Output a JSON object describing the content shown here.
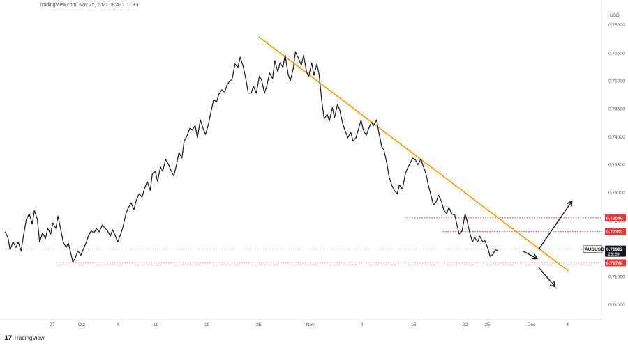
{
  "header": {
    "source_text": "TradingView.com, Nov 25, 2021 08:43 UTC+3"
  },
  "footer": {
    "logo_text": "TradingView"
  },
  "chart_data": {
    "type": "line",
    "symbol": "AUDUSD",
    "currency": "USD",
    "price_axis": {
      "ticks": [
        0.76,
        0.755,
        0.75,
        0.745,
        0.74,
        0.735,
        0.73,
        0.725,
        0.72,
        0.715,
        0.71
      ],
      "tick_labels": [
        "0.76000",
        "0.75500",
        "0.75000",
        "0.74500",
        "0.74000",
        "0.73500",
        "0.73000",
        "0.72500",
        "0.72000",
        "0.71500",
        "0.71000"
      ],
      "ylim": [
        0.7073,
        0.7627
      ]
    },
    "time_axis": {
      "ticks": [
        {
          "label": "27",
          "day": -4
        },
        {
          "label": "Oct",
          "day": 0
        },
        {
          "label": "6",
          "day": 5
        },
        {
          "label": "11",
          "day": 10
        },
        {
          "label": "18",
          "day": 17
        },
        {
          "label": "25",
          "day": 24
        },
        {
          "label": "Nov",
          "day": 31
        },
        {
          "label": "8",
          "day": 38
        },
        {
          "label": "15",
          "day": 45
        },
        {
          "label": "22",
          "day": 52
        },
        {
          "label": "25",
          "day": 55
        },
        {
          "label": "Dec",
          "day": 61
        },
        {
          "label": "6",
          "day": 66
        }
      ],
      "xlim": [
        -10.5,
        70.5
      ]
    },
    "price_series": [
      [
        -10.4,
        0.723
      ],
      [
        -10.0,
        0.722
      ],
      [
        -9.7,
        0.7198
      ],
      [
        -9.3,
        0.7212
      ],
      [
        -8.9,
        0.7202
      ],
      [
        -8.6,
        0.7212
      ],
      [
        -8.2,
        0.7196
      ],
      [
        -7.9,
        0.7222
      ],
      [
        -7.5,
        0.7252
      ],
      [
        -7.1,
        0.7262
      ],
      [
        -6.7,
        0.7244
      ],
      [
        -6.4,
        0.7268
      ],
      [
        -6.0,
        0.7252
      ],
      [
        -5.7,
        0.7212
      ],
      [
        -5.3,
        0.7228
      ],
      [
        -4.9,
        0.7218
      ],
      [
        -4.6,
        0.7236
      ],
      [
        -4.2,
        0.7226
      ],
      [
        -3.9,
        0.7246
      ],
      [
        -3.5,
        0.7236
      ],
      [
        -3.2,
        0.7258
      ],
      [
        -2.8,
        0.7232
      ],
      [
        -2.5,
        0.7212
      ],
      [
        -2.1,
        0.7202
      ],
      [
        -1.8,
        0.721
      ],
      [
        -1.5,
        0.7194
      ],
      [
        -1.2,
        0.7176
      ],
      [
        -0.9,
        0.7182
      ],
      [
        -0.5,
        0.7196
      ],
      [
        -0.1,
        0.7188
      ],
      [
        0.2,
        0.7198
      ],
      [
        0.6,
        0.721
      ],
      [
        0.9,
        0.7222
      ],
      [
        1.3,
        0.7232
      ],
      [
        1.7,
        0.7228
      ],
      [
        2.0,
        0.7236
      ],
      [
        2.4,
        0.723
      ],
      [
        2.8,
        0.7242
      ],
      [
        3.1,
        0.7238
      ],
      [
        3.5,
        0.7232
      ],
      [
        3.9,
        0.7222
      ],
      [
        4.2,
        0.7234
      ],
      [
        4.6,
        0.7222
      ],
      [
        4.9,
        0.7212
      ],
      [
        5.3,
        0.7226
      ],
      [
        5.6,
        0.7238
      ],
      [
        6.0,
        0.7262
      ],
      [
        6.3,
        0.7272
      ],
      [
        6.7,
        0.7282
      ],
      [
        7.1,
        0.727
      ],
      [
        7.4,
        0.7286
      ],
      [
        7.8,
        0.7298
      ],
      [
        8.2,
        0.7292
      ],
      [
        8.5,
        0.7306
      ],
      [
        8.9,
        0.732
      ],
      [
        9.3,
        0.7304
      ],
      [
        9.6,
        0.7334
      ],
      [
        10.0,
        0.7338
      ],
      [
        10.3,
        0.732
      ],
      [
        10.7,
        0.7346
      ],
      [
        11.0,
        0.7338
      ],
      [
        11.4,
        0.736
      ],
      [
        11.8,
        0.735
      ],
      [
        12.1,
        0.734
      ],
      [
        12.5,
        0.733
      ],
      [
        12.9,
        0.7352
      ],
      [
        13.2,
        0.7372
      ],
      [
        13.6,
        0.7362
      ],
      [
        13.9,
        0.7392
      ],
      [
        14.3,
        0.7402
      ],
      [
        14.7,
        0.7416
      ],
      [
        15.0,
        0.7412
      ],
      [
        15.4,
        0.742
      ],
      [
        15.7,
        0.7398
      ],
      [
        16.1,
        0.743
      ],
      [
        16.5,
        0.7414
      ],
      [
        16.8,
        0.7404
      ],
      [
        17.2,
        0.7422
      ],
      [
        17.5,
        0.7442
      ],
      [
        17.9,
        0.7466
      ],
      [
        18.3,
        0.7462
      ],
      [
        18.6,
        0.7476
      ],
      [
        19.0,
        0.7484
      ],
      [
        19.4,
        0.748
      ],
      [
        19.7,
        0.7492
      ],
      [
        20.1,
        0.75
      ],
      [
        20.4,
        0.7502
      ],
      [
        20.8,
        0.753
      ],
      [
        21.2,
        0.7524
      ],
      [
        21.5,
        0.7542
      ],
      [
        21.9,
        0.7526
      ],
      [
        22.2,
        0.7508
      ],
      [
        22.6,
        0.7478
      ],
      [
        23.0,
        0.7478
      ],
      [
        23.3,
        0.749
      ],
      [
        23.7,
        0.7478
      ],
      [
        24.1,
        0.7508
      ],
      [
        24.4,
        0.7502
      ],
      [
        24.8,
        0.7478
      ],
      [
        25.1,
        0.749
      ],
      [
        25.5,
        0.7514
      ],
      [
        25.9,
        0.7504
      ],
      [
        26.2,
        0.7536
      ],
      [
        26.6,
        0.7516
      ],
      [
        26.9,
        0.7532
      ],
      [
        27.3,
        0.7524
      ],
      [
        27.6,
        0.7546
      ],
      [
        28.0,
        0.7512
      ],
      [
        28.3,
        0.75
      ],
      [
        28.7,
        0.7522
      ],
      [
        29.0,
        0.7552
      ],
      [
        29.4,
        0.754
      ],
      [
        29.8,
        0.7528
      ],
      [
        30.1,
        0.7546
      ],
      [
        30.5,
        0.7516
      ],
      [
        30.8,
        0.7508
      ],
      [
        31.2,
        0.7532
      ],
      [
        31.5,
        0.751
      ],
      [
        31.9,
        0.753
      ],
      [
        32.2,
        0.7512
      ],
      [
        32.6,
        0.746
      ],
      [
        32.9,
        0.7432
      ],
      [
        33.3,
        0.744
      ],
      [
        33.6,
        0.7428
      ],
      [
        34.0,
        0.7452
      ],
      [
        34.3,
        0.7434
      ],
      [
        34.7,
        0.7458
      ],
      [
        35.0,
        0.7448
      ],
      [
        35.4,
        0.7424
      ],
      [
        35.7,
        0.7412
      ],
      [
        36.1,
        0.7398
      ],
      [
        36.5,
        0.7408
      ],
      [
        36.8,
        0.7392
      ],
      [
        37.2,
        0.7398
      ],
      [
        37.5,
        0.7412
      ],
      [
        37.9,
        0.743
      ],
      [
        38.2,
        0.7412
      ],
      [
        38.6,
        0.7402
      ],
      [
        38.9,
        0.7414
      ],
      [
        39.3,
        0.7426
      ],
      [
        39.6,
        0.742
      ],
      [
        40.0,
        0.743
      ],
      [
        40.3,
        0.7408
      ],
      [
        40.7,
        0.7382
      ],
      [
        41.0,
        0.7376
      ],
      [
        41.4,
        0.7352
      ],
      [
        41.7,
        0.7328
      ],
      [
        42.1,
        0.7312
      ],
      [
        42.4,
        0.7304
      ],
      [
        42.8,
        0.7298
      ],
      [
        43.1,
        0.7314
      ],
      [
        43.5,
        0.7306
      ],
      [
        43.9,
        0.7334
      ],
      [
        44.2,
        0.7344
      ],
      [
        44.6,
        0.7354
      ],
      [
        44.9,
        0.7362
      ],
      [
        45.3,
        0.7358
      ],
      [
        45.6,
        0.735
      ],
      [
        46.0,
        0.736
      ],
      [
        46.3,
        0.7348
      ],
      [
        46.7,
        0.7334
      ],
      [
        47.0,
        0.7314
      ],
      [
        47.4,
        0.7294
      ],
      [
        47.7,
        0.7278
      ],
      [
        48.1,
        0.7284
      ],
      [
        48.4,
        0.7296
      ],
      [
        48.8,
        0.7284
      ],
      [
        49.1,
        0.727
      ],
      [
        49.5,
        0.7262
      ],
      [
        49.8,
        0.7274
      ],
      [
        50.2,
        0.7262
      ],
      [
        50.6,
        0.726
      ],
      [
        50.9,
        0.7242
      ],
      [
        51.2,
        0.7226
      ],
      [
        51.6,
        0.7232
      ],
      [
        52.0,
        0.7262
      ],
      [
        52.3,
        0.7248
      ],
      [
        52.6,
        0.723
      ],
      [
        53.0,
        0.7212
      ],
      [
        53.3,
        0.722
      ],
      [
        53.7,
        0.7212
      ],
      [
        54.0,
        0.7222
      ],
      [
        54.4,
        0.7212
      ],
      [
        54.7,
        0.7214
      ],
      [
        55.1,
        0.72
      ],
      [
        55.4,
        0.7186
      ],
      [
        55.8,
        0.719
      ],
      [
        56.1,
        0.7198
      ],
      [
        56.5,
        0.7196
      ]
    ],
    "trendline": {
      "color": "#ff9800",
      "from": [
        24.0,
        0.7579
      ],
      "to": [
        66.0,
        0.716
      ]
    },
    "levels": [
      {
        "value": 0.72549,
        "label": "0.72549",
        "from_day": 43.8
      },
      {
        "value": 0.72303,
        "label": "0.72303",
        "from_day": 49.0
      },
      {
        "value": 0.71746,
        "label": "0.71746",
        "from_day": -3.5
      }
    ],
    "last_price": {
      "symbol": "AUDUSD",
      "value": 0.71992,
      "label": "0.71992",
      "countdown": "16:59"
    },
    "arrows": [
      {
        "direction": "down-right",
        "from": [
          59.8,
          0.7196
        ],
        "to": [
          61.8,
          0.7182
        ]
      },
      {
        "direction": "up-right",
        "from": [
          62.0,
          0.7199
        ],
        "to": [
          66.5,
          0.7285
        ]
      },
      {
        "direction": "down-right",
        "from": [
          62.0,
          0.7166
        ],
        "to": [
          64.2,
          0.7132
        ]
      }
    ],
    "colors": {
      "line": "#131722",
      "level": "#e53935",
      "trend": "#ff9800",
      "tag": "#e53935",
      "last_tag": "#131722"
    }
  }
}
